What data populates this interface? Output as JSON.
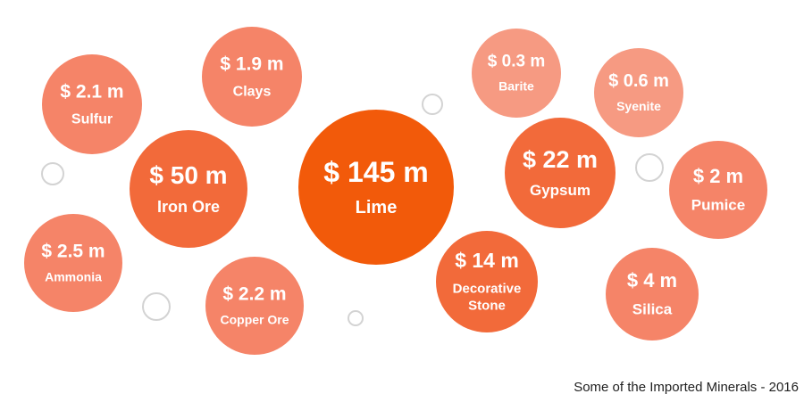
{
  "chart_data": {
    "type": "bubble",
    "unit_prefix": "$",
    "unit_suffix": "m",
    "items": [
      {
        "name": "Lime",
        "value": 145,
        "label": "$ 145 m",
        "color": "#F25A0A"
      },
      {
        "name": "Iron Ore",
        "value": 50,
        "label": "$ 50 m",
        "color": "#F26A3A"
      },
      {
        "name": "Gypsum",
        "value": 22,
        "label": "$ 22 m",
        "color": "#F26A3A"
      },
      {
        "name": "Decorative Stone",
        "value": 14,
        "label": "$ 14 m",
        "color": "#F26A3A"
      },
      {
        "name": "Silica",
        "value": 4,
        "label": "$ 4 m",
        "color": "#F58468"
      },
      {
        "name": "Ammonia",
        "value": 2.5,
        "label": "$ 2.5 m",
        "color": "#F58468"
      },
      {
        "name": "Copper Ore",
        "value": 2.2,
        "label": "$ 2.2 m",
        "color": "#F58468"
      },
      {
        "name": "Sulfur",
        "value": 2.1,
        "label": "$ 2.1 m",
        "color": "#F58468"
      },
      {
        "name": "Pumice",
        "value": 2,
        "label": "$ 2 m",
        "color": "#F58468"
      },
      {
        "name": "Clays",
        "value": 1.9,
        "label": "$ 1.9 m",
        "color": "#F58468"
      },
      {
        "name": "Syenite",
        "value": 0.6,
        "label": "$ 0.6 m",
        "color": "#F69A82"
      },
      {
        "name": "Barite",
        "value": 0.3,
        "label": "$ 0.3 m",
        "color": "#F69A82"
      }
    ],
    "decor_color": "#D3D3D3"
  },
  "caption": "Some of the Imported Minerals - 2016"
}
